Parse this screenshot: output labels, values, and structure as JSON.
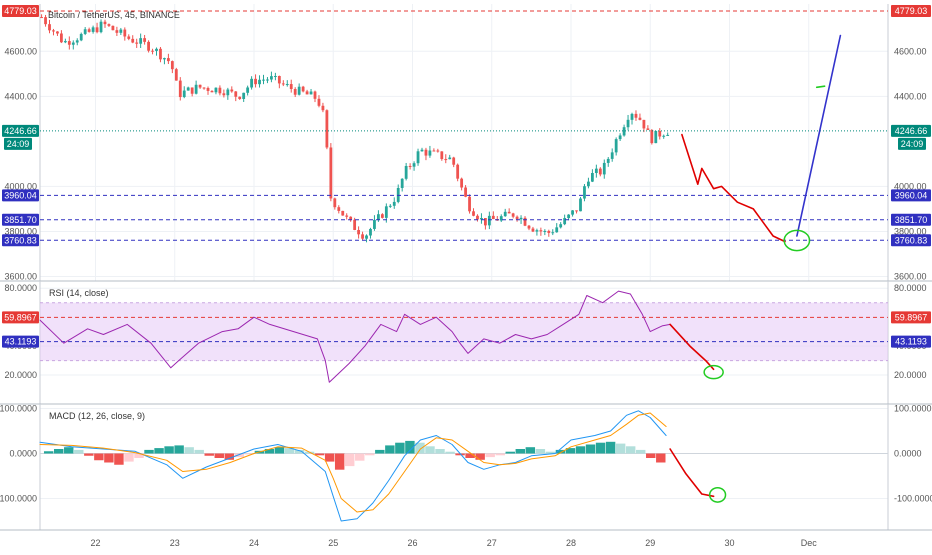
{
  "chart_data": [
    {
      "type": "candlestick",
      "title": "Bitcoin / TetherUS, 45, BINANCE",
      "ylim": [
        3580,
        4810
      ],
      "y_ticks": [
        "4600.00",
        "4400.00",
        "4000.00",
        "3800.00",
        "3600.00"
      ],
      "y_tick_values": [
        4600,
        4400,
        4000,
        3800,
        3600
      ],
      "x_ticks": [
        "22",
        "23",
        "24",
        "25",
        "26",
        "27",
        "28",
        "29",
        "30",
        "Dec"
      ],
      "x_tick_values": [
        22,
        23,
        24,
        25,
        26,
        27,
        28,
        29,
        30,
        31
      ],
      "x_range": [
        21.3,
        32.0
      ],
      "colors": {
        "up": "#26a69a",
        "down": "#ef5350",
        "grid": "#e9eef3"
      },
      "close_path": [
        [
          21.3,
          4760
        ],
        [
          21.6,
          4640
        ],
        [
          21.9,
          4680
        ],
        [
          22.1,
          4720
        ],
        [
          22.4,
          4660
        ],
        [
          22.7,
          4620
        ],
        [
          22.95,
          4550
        ],
        [
          23.05,
          4410
        ],
        [
          23.3,
          4440
        ],
        [
          23.6,
          4430
        ],
        [
          23.8,
          4400
        ],
        [
          24.0,
          4470
        ],
        [
          24.2,
          4480
        ],
        [
          24.5,
          4430
        ],
        [
          24.8,
          4390
        ],
        [
          24.9,
          4290
        ],
        [
          24.95,
          3960
        ],
        [
          25.2,
          3840
        ],
        [
          25.4,
          3780
        ],
        [
          25.6,
          3870
        ],
        [
          25.8,
          3960
        ],
        [
          25.9,
          4060
        ],
        [
          26.1,
          4160
        ],
        [
          26.3,
          4140
        ],
        [
          26.5,
          4120
        ],
        [
          26.6,
          4010
        ],
        [
          26.7,
          3920
        ],
        [
          26.9,
          3840
        ],
        [
          27.1,
          3860
        ],
        [
          27.3,
          3880
        ],
        [
          27.5,
          3820
        ],
        [
          27.7,
          3790
        ],
        [
          27.9,
          3840
        ],
        [
          28.1,
          3910
        ],
        [
          28.2,
          4040
        ],
        [
          28.4,
          4070
        ],
        [
          28.6,
          4230
        ],
        [
          28.75,
          4340
        ],
        [
          28.9,
          4290
        ],
        [
          29.0,
          4210
        ],
        [
          29.15,
          4240
        ],
        [
          29.25,
          4250
        ]
      ],
      "levels": [
        {
          "label": "4779.03",
          "value": 4779.03,
          "color": "#e53935",
          "style": "dashed"
        },
        {
          "label": "4246.66",
          "value": 4246.66,
          "color": "#00897b",
          "style": "dotted"
        },
        {
          "label": "3960.04",
          "value": 3960.04,
          "color": "#3030c0",
          "style": "dashed"
        },
        {
          "label": "3851.70",
          "value": 3851.7,
          "color": "#3030c0",
          "style": "dashed"
        },
        {
          "label": "3760.83",
          "value": 3760.83,
          "color": "#3030c0",
          "style": "dashed"
        }
      ],
      "countdown_label": "24:09",
      "drawings": [
        {
          "name": "forecast-red-path",
          "color": "#e00000",
          "points": [
            [
              29.4,
              4230
            ],
            [
              29.6,
              4010
            ],
            [
              29.65,
              4080
            ],
            [
              29.8,
              3990
            ],
            [
              29.9,
              4000
            ],
            [
              30.1,
              3930
            ],
            [
              30.3,
              3900
            ],
            [
              30.55,
              3780
            ],
            [
              30.7,
              3755
            ]
          ]
        },
        {
          "name": "forecast-blue-line",
          "color": "#3333cc",
          "points": [
            [
              30.85,
              3780
            ],
            [
              31.4,
              4670
            ]
          ]
        },
        {
          "name": "green-tick-mark",
          "color": "#22cc22",
          "points": [
            [
              31.1,
              4440
            ],
            [
              31.2,
              4445
            ]
          ]
        }
      ],
      "ellipses": [
        {
          "name": "target-ellipse",
          "color": "#22cc22",
          "cx": 30.85,
          "cy": 3760,
          "rx": 0.16,
          "ry": 45
        }
      ]
    },
    {
      "type": "line",
      "title": "RSI (14, close)",
      "ylim": [
        0,
        85
      ],
      "y_ticks": [
        "80.0000",
        "40.0000",
        "20.0000"
      ],
      "y_tick_values": [
        80,
        40,
        20
      ],
      "band": [
        30,
        70
      ],
      "band_color": "#e5c8f5",
      "series": [
        {
          "color": "#9c27b0",
          "points": [
            [
              21.3,
              58
            ],
            [
              21.6,
              42
            ],
            [
              21.9,
              52
            ],
            [
              22.1,
              48
            ],
            [
              22.4,
              55
            ],
            [
              22.7,
              42
            ],
            [
              22.95,
              25
            ],
            [
              23.05,
              30
            ],
            [
              23.3,
              42
            ],
            [
              23.6,
              50
            ],
            [
              23.8,
              52
            ],
            [
              24.0,
              60
            ],
            [
              24.2,
              55
            ],
            [
              24.5,
              50
            ],
            [
              24.8,
              45
            ],
            [
              24.9,
              30
            ],
            [
              24.95,
              15
            ],
            [
              25.2,
              28
            ],
            [
              25.4,
              40
            ],
            [
              25.6,
              55
            ],
            [
              25.8,
              50
            ],
            [
              25.9,
              62
            ],
            [
              26.1,
              55
            ],
            [
              26.3,
              60
            ],
            [
              26.5,
              50
            ],
            [
              26.6,
              42
            ],
            [
              26.7,
              35
            ],
            [
              26.9,
              45
            ],
            [
              27.1,
              42
            ],
            [
              27.3,
              48
            ],
            [
              27.5,
              45
            ],
            [
              27.7,
              48
            ],
            [
              27.9,
              55
            ],
            [
              28.1,
              62
            ],
            [
              28.2,
              75
            ],
            [
              28.4,
              70
            ],
            [
              28.6,
              78
            ],
            [
              28.75,
              76
            ],
            [
              28.9,
              62
            ],
            [
              29.0,
              50
            ],
            [
              29.15,
              54
            ],
            [
              29.25,
              55
            ]
          ]
        }
      ],
      "levels": [
        {
          "label": "59.8967",
          "value": 59.8967,
          "color": "#e53935",
          "style": "dashed"
        },
        {
          "label": "43.1193",
          "value": 43.1193,
          "color": "#3030c0",
          "style": "dashed"
        }
      ],
      "drawings": [
        {
          "name": "forecast-red-path",
          "color": "#e00000",
          "points": [
            [
              29.25,
              55
            ],
            [
              29.5,
              40
            ],
            [
              29.7,
              30
            ],
            [
              29.8,
              24
            ]
          ]
        }
      ],
      "ellipses": [
        {
          "name": "target-ellipse",
          "color": "#22cc22",
          "cx": 29.8,
          "cy": 22,
          "rx": 0.12,
          "ry": 4.5
        }
      ]
    },
    {
      "type": "histogram",
      "title": "MACD (12, 26, close, 9)",
      "ylim": [
        -170,
        110
      ],
      "y_ticks": [
        "100.0000",
        "0.0000",
        "-100.0000"
      ],
      "y_tick_values": [
        100,
        0,
        -100
      ],
      "zero_line": 0,
      "histogram_values": [
        5,
        10,
        14,
        8,
        -5,
        -15,
        -20,
        -25,
        -18,
        -10,
        8,
        12,
        16,
        18,
        14,
        8,
        -5,
        -10,
        -14,
        -8,
        -2,
        6,
        10,
        14,
        12,
        8,
        4,
        -4,
        -18,
        -36,
        -28,
        -16,
        -4,
        8,
        18,
        24,
        28,
        24,
        16,
        10,
        4,
        -4,
        -10,
        -14,
        -8,
        -4,
        4,
        10,
        14,
        10,
        4,
        8,
        12,
        16,
        20,
        24,
        26,
        22,
        16,
        8,
        -10,
        -20
      ],
      "histogram_x_range": [
        21.35,
        29.2
      ],
      "colors": {
        "pos_up": "#26a69a",
        "pos_down": "#b2dfdb",
        "neg_down": "#ef5350",
        "neg_up": "#ffcdd2"
      },
      "series": [
        {
          "color": "#2196f3",
          "points": [
            [
              21.3,
              25
            ],
            [
              21.7,
              15
            ],
            [
              22.1,
              10
            ],
            [
              22.5,
              5
            ],
            [
              22.9,
              -25
            ],
            [
              23.1,
              -55
            ],
            [
              23.4,
              -30
            ],
            [
              23.7,
              -10
            ],
            [
              24.0,
              10
            ],
            [
              24.3,
              20
            ],
            [
              24.6,
              5
            ],
            [
              24.9,
              -40
            ],
            [
              25.0,
              -95
            ],
            [
              25.1,
              -150
            ],
            [
              25.3,
              -145
            ],
            [
              25.5,
              -110
            ],
            [
              25.7,
              -60
            ],
            [
              25.9,
              -5
            ],
            [
              26.1,
              30
            ],
            [
              26.3,
              40
            ],
            [
              26.5,
              20
            ],
            [
              26.7,
              -20
            ],
            [
              26.9,
              -35
            ],
            [
              27.1,
              -25
            ],
            [
              27.3,
              -20
            ],
            [
              27.5,
              -5
            ],
            [
              27.8,
              0
            ],
            [
              28.0,
              30
            ],
            [
              28.3,
              40
            ],
            [
              28.5,
              50
            ],
            [
              28.7,
              85
            ],
            [
              28.85,
              95
            ],
            [
              29.0,
              80
            ],
            [
              29.2,
              40
            ]
          ]
        },
        {
          "color": "#ff9800",
          "points": [
            [
              21.3,
              20
            ],
            [
              21.7,
              18
            ],
            [
              22.1,
              12
            ],
            [
              22.5,
              2
            ],
            [
              22.9,
              -15
            ],
            [
              23.1,
              -40
            ],
            [
              23.4,
              -35
            ],
            [
              23.7,
              -20
            ],
            [
              24.0,
              0
            ],
            [
              24.3,
              15
            ],
            [
              24.6,
              12
            ],
            [
              24.9,
              -15
            ],
            [
              25.0,
              -55
            ],
            [
              25.1,
              -100
            ],
            [
              25.3,
              -130
            ],
            [
              25.5,
              -125
            ],
            [
              25.7,
              -90
            ],
            [
              25.9,
              -40
            ],
            [
              26.1,
              10
            ],
            [
              26.3,
              35
            ],
            [
              26.5,
              30
            ],
            [
              26.7,
              5
            ],
            [
              26.9,
              -20
            ],
            [
              27.1,
              -25
            ],
            [
              27.3,
              -22
            ],
            [
              27.5,
              -12
            ],
            [
              27.8,
              -5
            ],
            [
              28.0,
              15
            ],
            [
              28.3,
              30
            ],
            [
              28.5,
              40
            ],
            [
              28.7,
              65
            ],
            [
              28.85,
              85
            ],
            [
              29.0,
              90
            ],
            [
              29.2,
              60
            ]
          ]
        }
      ],
      "drawings": [
        {
          "name": "forecast-red-path",
          "color": "#e00000",
          "points": [
            [
              29.25,
              10
            ],
            [
              29.45,
              -45
            ],
            [
              29.65,
              -90
            ],
            [
              29.8,
              -95
            ]
          ]
        }
      ],
      "ellipses": [
        {
          "name": "target-ellipse",
          "color": "#22cc22",
          "cx": 29.85,
          "cy": -92,
          "rx": 0.1,
          "ry": 16
        }
      ]
    }
  ]
}
